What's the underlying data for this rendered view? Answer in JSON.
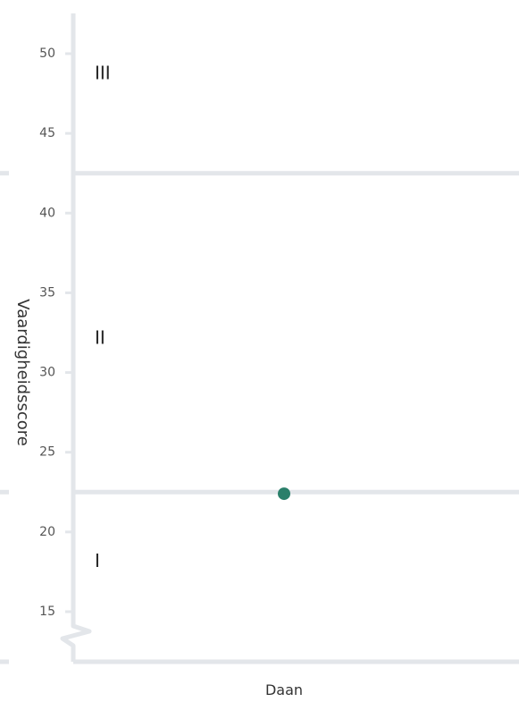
{
  "chart_data": {
    "type": "scatter",
    "title": "",
    "xlabel": "",
    "ylabel": "Vaardigheidsscore",
    "categories": [
      "Daan"
    ],
    "series": [
      {
        "values": [
          22.4
        ]
      }
    ],
    "ylim": [
      12,
      53
    ],
    "yticks": [
      15,
      20,
      25,
      30,
      35,
      40,
      45,
      50
    ],
    "axis_break": true,
    "grid": false,
    "zones": [
      {
        "label": "I",
        "from": 12,
        "to": 22.5
      },
      {
        "label": "II",
        "from": 22.5,
        "to": 42.5
      },
      {
        "label": "III",
        "from": 42.5,
        "to": 53
      }
    ],
    "zone_boundaries": [
      22.5,
      42.5
    ]
  },
  "colors": {
    "point": "#2a7f6a",
    "axis": "#e3e6ea",
    "text": "#555555"
  }
}
